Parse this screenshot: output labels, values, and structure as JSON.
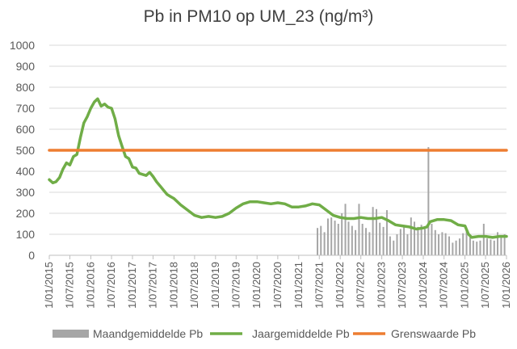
{
  "chart_data": {
    "type": "line",
    "title": "Pb in PM10 op UM_23 (ng/m³)",
    "xlabel": "",
    "ylabel": "",
    "ylim": [
      0,
      1000
    ],
    "yticks": [
      0,
      100,
      200,
      300,
      400,
      500,
      600,
      700,
      800,
      900,
      1000
    ],
    "grid": "horizontal",
    "legend_position": "bottom",
    "xlim": [
      "2015-01-01",
      "2026-01-01"
    ],
    "x_tick_labels": [
      "1/01/2015",
      "1/07/2015",
      "1/01/2016",
      "1/07/2016",
      "1/01/2017",
      "1/07/2017",
      "1/01/2018",
      "1/07/2018",
      "1/01/2019",
      "1/07/2019",
      "1/01/2020",
      "1/07/2020",
      "1/01/2021",
      "1/07/2021",
      "1/01/2022",
      "1/07/2022",
      "1/01/2023",
      "1/07/2023",
      "1/01/2024",
      "1/07/2024",
      "1/01/2025",
      "1/07/2025",
      "1/01/2026"
    ],
    "series": [
      {
        "name": "Maandgemiddelde Pb",
        "type": "bar",
        "color": "#a6a6a6",
        "x": [
          "2021-06-15",
          "2021-07-15",
          "2021-08-15",
          "2021-09-15",
          "2021-10-15",
          "2021-11-15",
          "2021-12-15",
          "2022-01-15",
          "2022-02-15",
          "2022-03-15",
          "2022-04-15",
          "2022-05-15",
          "2022-06-15",
          "2022-07-15",
          "2022-08-15",
          "2022-09-15",
          "2022-10-15",
          "2022-11-15",
          "2022-12-15",
          "2023-01-15",
          "2023-02-15",
          "2023-03-15",
          "2023-04-15",
          "2023-05-15",
          "2023-06-15",
          "2023-07-15",
          "2023-08-15",
          "2023-09-15",
          "2023-10-15",
          "2023-11-15",
          "2023-12-15",
          "2024-01-15",
          "2024-02-15",
          "2024-03-15",
          "2024-04-15",
          "2024-05-15",
          "2024-06-15",
          "2024-07-15",
          "2024-08-15",
          "2024-09-15",
          "2024-10-15",
          "2024-11-15",
          "2024-12-15",
          "2025-01-15",
          "2025-02-15",
          "2025-03-15",
          "2025-04-15",
          "2025-05-15",
          "2025-06-15",
          "2025-07-15",
          "2025-08-15",
          "2025-09-15",
          "2025-10-15",
          "2025-11-15",
          "2025-12-15"
        ],
        "values": [
          130,
          140,
          110,
          175,
          180,
          165,
          150,
          200,
          245,
          160,
          140,
          120,
          245,
          150,
          130,
          110,
          230,
          220,
          155,
          135,
          215,
          90,
          70,
          100,
          125,
          140,
          100,
          180,
          160,
          135,
          145,
          125,
          515,
          150,
          120,
          100,
          110,
          105,
          90,
          60,
          70,
          80,
          105,
          120,
          85,
          70,
          65,
          70,
          150,
          80,
          75,
          70,
          110,
          85,
          100
        ]
      },
      {
        "name": "Jaargemiddelde Pb",
        "type": "line",
        "color": "#70ad47",
        "x": [
          "2015-01-01",
          "2015-02-01",
          "2015-03-01",
          "2015-04-01",
          "2015-05-01",
          "2015-06-01",
          "2015-07-01",
          "2015-08-01",
          "2015-09-01",
          "2015-10-01",
          "2015-11-01",
          "2015-12-01",
          "2016-01-01",
          "2016-02-01",
          "2016-03-01",
          "2016-04-01",
          "2016-05-01",
          "2016-06-01",
          "2016-07-01",
          "2016-08-01",
          "2016-09-01",
          "2016-10-01",
          "2016-11-01",
          "2016-12-01",
          "2017-01-01",
          "2017-02-01",
          "2017-03-01",
          "2017-04-01",
          "2017-05-01",
          "2017-06-01",
          "2017-07-01",
          "2017-08-01",
          "2017-09-01",
          "2017-10-01",
          "2017-11-01",
          "2017-12-01",
          "2018-01-01",
          "2018-03-01",
          "2018-05-01",
          "2018-07-01",
          "2018-09-01",
          "2018-11-01",
          "2019-01-01",
          "2019-03-01",
          "2019-05-01",
          "2019-07-01",
          "2019-09-01",
          "2019-11-01",
          "2020-01-01",
          "2020-03-01",
          "2020-05-01",
          "2020-07-01",
          "2020-09-01",
          "2020-11-01",
          "2021-01-01",
          "2021-03-01",
          "2021-05-01",
          "2021-07-01",
          "2021-09-01",
          "2021-11-01",
          "2022-01-01",
          "2022-03-01",
          "2022-05-01",
          "2022-07-01",
          "2022-09-01",
          "2022-11-01",
          "2023-01-01",
          "2023-03-01",
          "2023-05-01",
          "2023-07-01",
          "2023-09-01",
          "2023-11-01",
          "2024-01-01",
          "2024-02-01",
          "2024-03-01",
          "2024-05-01",
          "2024-07-01",
          "2024-09-01",
          "2024-11-01",
          "2025-01-01",
          "2025-02-01",
          "2025-03-01",
          "2025-05-01",
          "2025-07-01",
          "2025-09-01",
          "2025-11-01",
          "2026-01-01"
        ],
        "values": [
          360,
          345,
          350,
          370,
          410,
          440,
          430,
          470,
          480,
          560,
          630,
          660,
          700,
          730,
          745,
          710,
          720,
          705,
          700,
          650,
          570,
          520,
          470,
          460,
          420,
          415,
          390,
          385,
          380,
          395,
          375,
          350,
          330,
          310,
          290,
          280,
          270,
          240,
          215,
          190,
          180,
          185,
          180,
          185,
          200,
          225,
          245,
          255,
          255,
          250,
          245,
          250,
          245,
          230,
          230,
          235,
          245,
          240,
          215,
          190,
          180,
          175,
          175,
          180,
          175,
          175,
          180,
          165,
          145,
          140,
          135,
          125,
          130,
          135,
          160,
          170,
          170,
          165,
          145,
          140,
          100,
          85,
          90,
          90,
          85,
          90,
          90
        ]
      },
      {
        "name": "Grenswaarde Pb",
        "type": "line",
        "color": "#ed7d31",
        "x": [
          "2015-01-01",
          "2026-01-01"
        ],
        "values": [
          500,
          500
        ]
      }
    ]
  }
}
